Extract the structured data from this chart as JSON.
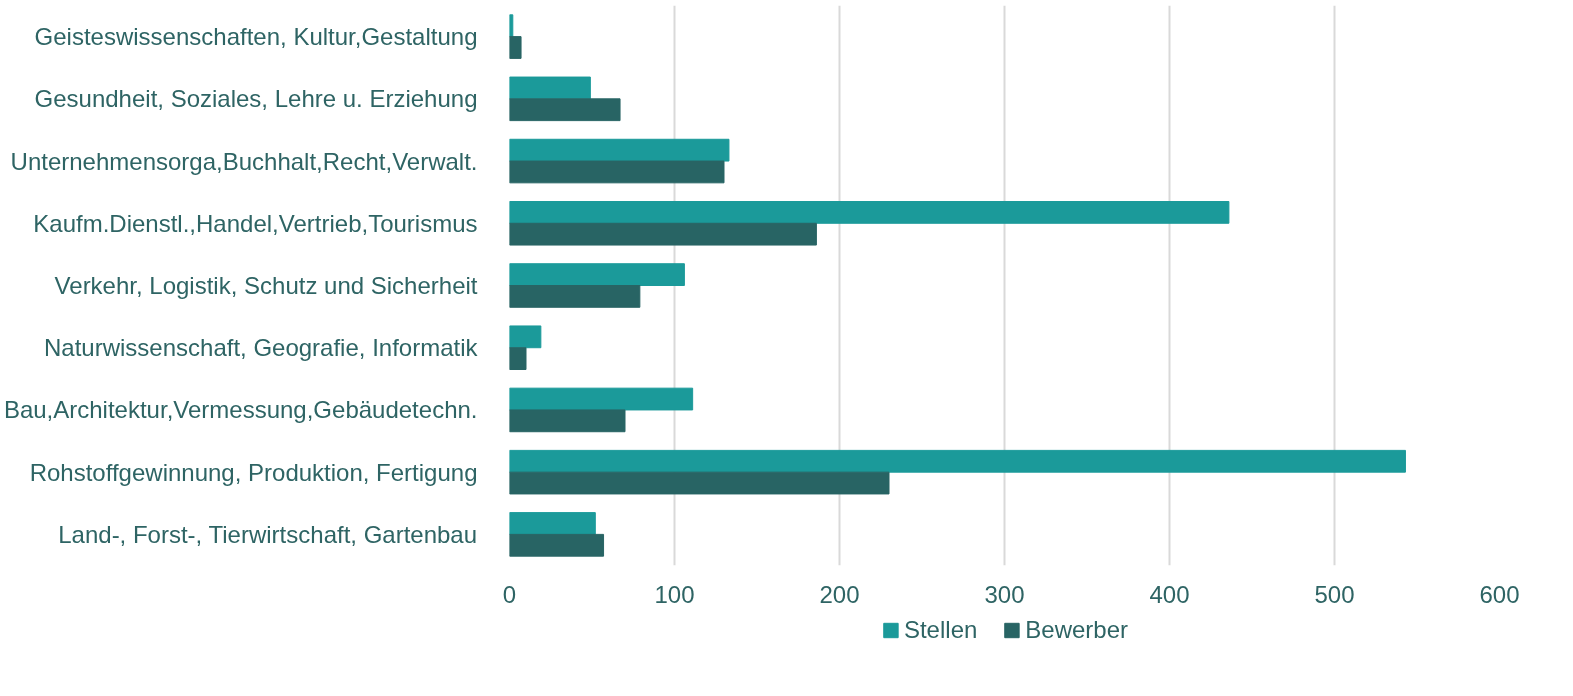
{
  "chart_data": {
    "type": "bar",
    "orientation": "horizontal",
    "categories": [
      "Geisteswissenschaften, Kultur,Gestaltung",
      "Gesundheit, Soziales, Lehre u. Erziehung",
      "Unternehmensorga,Buchhalt,Recht,Verwalt.",
      "Kaufm.Dienstl.,Handel,Vertrieb,Tourismus",
      "Verkehr, Logistik, Schutz und Sicherheit",
      "Naturwissenschaft, Geografie, Informatik",
      "Bau,Architektur,Vermessung,Gebäudetechn.",
      "Rohstoffgewinnung, Produktion, Fertigung",
      "Land-, Forst-, Tierwirtschaft, Gartenbau"
    ],
    "series": [
      {
        "name": "Stellen",
        "color": "#1b9a9a",
        "values": [
          2,
          49,
          133,
          436,
          106,
          19,
          111,
          543,
          52
        ]
      },
      {
        "name": "Bewerber",
        "color": "#286464",
        "values": [
          7,
          67,
          130,
          186,
          79,
          10,
          70,
          230,
          57
        ]
      }
    ],
    "xlim": [
      0,
      600
    ],
    "xticks": [
      0,
      100,
      200,
      300,
      400,
      500,
      600
    ],
    "grid": "x",
    "legend": "bottom"
  }
}
